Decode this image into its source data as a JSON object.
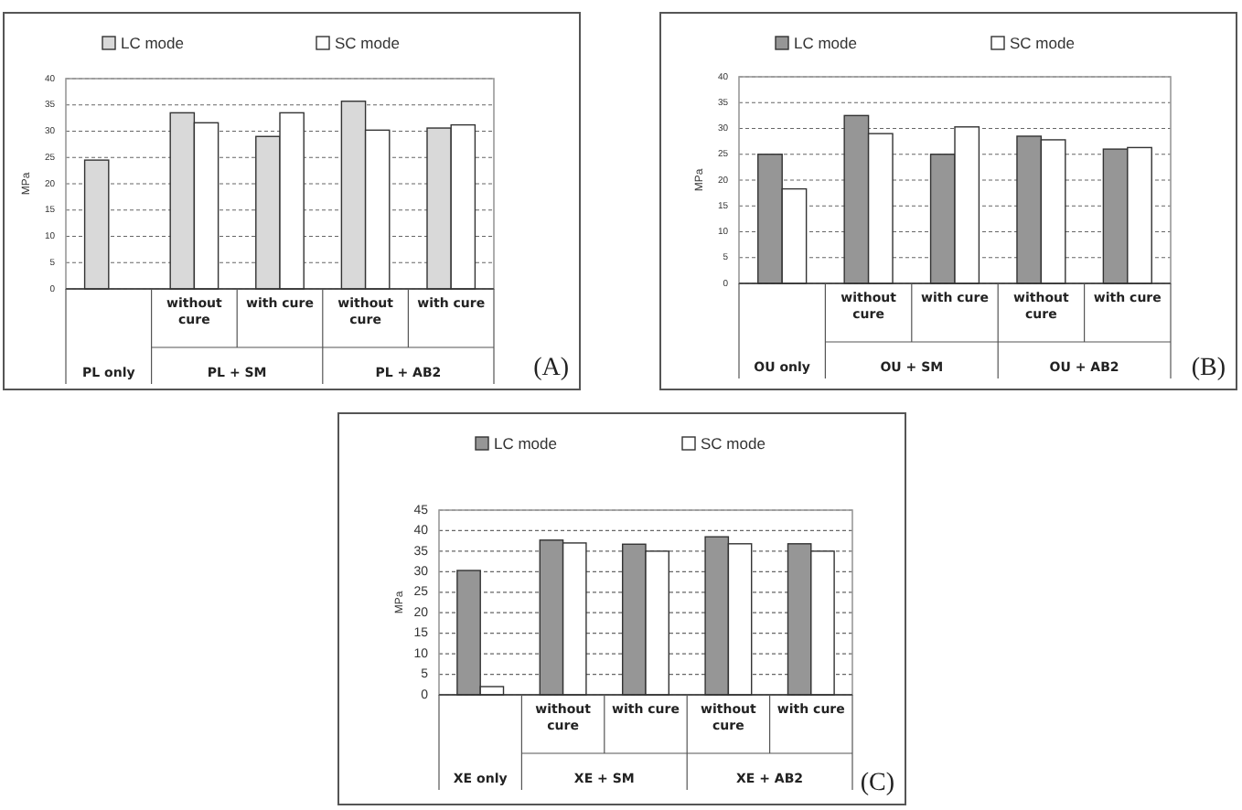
{
  "chart_data": [
    {
      "type": "bar",
      "ylabel": "MPa",
      "categories": [
        null,
        "without cure",
        "with cure",
        "without cure",
        "with cure"
      ],
      "ylim": [
        0,
        40
      ],
      "yticks": [
        0,
        5,
        10,
        15,
        20,
        25,
        30,
        35,
        40
      ],
      "grid": "y",
      "legend": "top",
      "series": [
        {
          "name": "LC mode",
          "color": "#d9d9d9",
          "values": [
            24.5,
            33.5,
            29,
            35.7,
            30.6
          ]
        },
        {
          "name": "SC mode",
          "color": "#ffffff",
          "values": [
            null,
            31.6,
            33.5,
            30.2,
            31.2
          ]
        }
      ],
      "annotations": [
        "PL only",
        "PL + SM",
        "PL + AB2",
        "(A)"
      ]
    },
    {
      "type": "bar",
      "ylabel": "MPa",
      "categories": [
        null,
        "without cure",
        "with cure",
        "without cure",
        "with cure"
      ],
      "ylim": [
        0,
        40
      ],
      "yticks": [
        0,
        5,
        10,
        15,
        20,
        25,
        30,
        35,
        40
      ],
      "grid": "y",
      "legend": "top",
      "series": [
        {
          "name": "LC mode",
          "color": "#969696",
          "values": [
            25,
            32.5,
            25,
            28.5,
            26
          ]
        },
        {
          "name": "SC mode",
          "color": "#ffffff",
          "values": [
            18.3,
            29,
            30.3,
            27.8,
            26.3
          ]
        }
      ],
      "annotations": [
        "OU only",
        "OU + SM",
        "OU + AB2",
        "(B)"
      ]
    },
    {
      "type": "bar",
      "ylabel": "MPa",
      "categories": [
        null,
        "without cure",
        "with cure",
        "without cure",
        "with cure"
      ],
      "ylim": [
        0,
        45
      ],
      "yticks": [
        0,
        5,
        10,
        15,
        20,
        25,
        30,
        35,
        40,
        45
      ],
      "grid": "y",
      "legend": "top",
      "series": [
        {
          "name": "LC mode",
          "color": "#969696",
          "values": [
            30.3,
            37.7,
            36.7,
            38.5,
            36.8
          ]
        },
        {
          "name": "SC mode",
          "color": "#ffffff",
          "values": [
            2,
            37,
            35,
            36.8,
            35
          ]
        }
      ],
      "annotations": [
        "XE only",
        "XE + SM",
        "XE + AB2",
        "(C)"
      ]
    }
  ]
}
